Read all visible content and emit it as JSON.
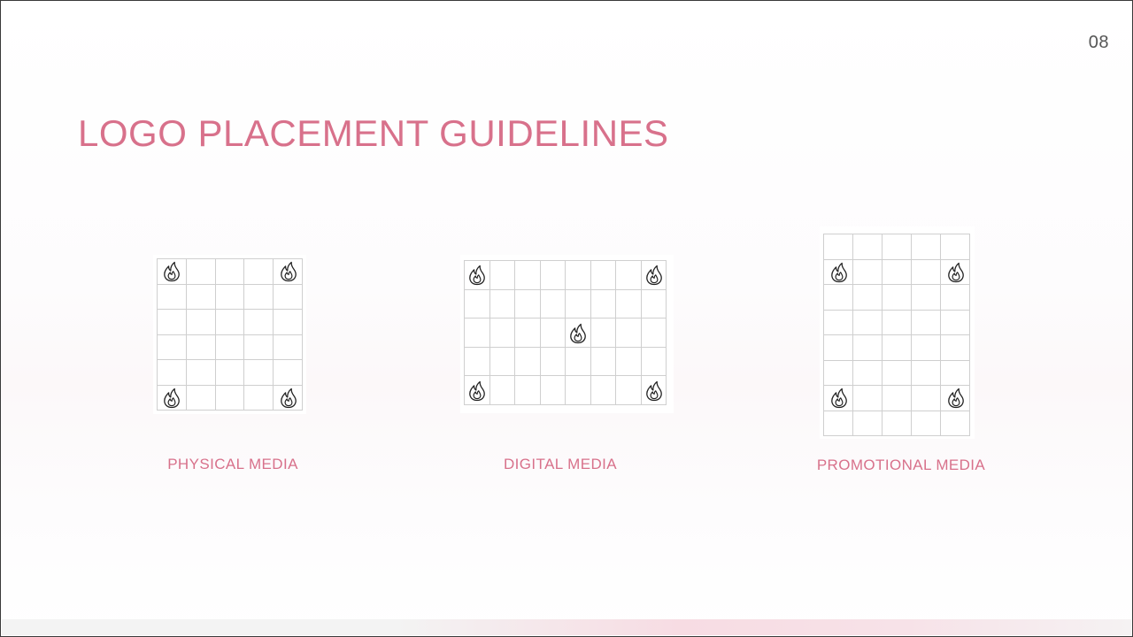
{
  "slide": {
    "page_number": "08",
    "title": "LOGO PLACEMENT GUIDELINES"
  },
  "media": [
    {
      "label": "PHYSICAL MEDIA",
      "grid": {
        "cols": 5,
        "rows": 6
      },
      "logo_cells": [
        [
          0,
          0
        ],
        [
          4,
          0
        ],
        [
          0,
          5
        ],
        [
          4,
          5
        ]
      ]
    },
    {
      "label": "DIGITAL MEDIA",
      "grid": {
        "cols": 8,
        "rows": 5
      },
      "logo_cells": [
        [
          0,
          0
        ],
        [
          7,
          0
        ],
        [
          4,
          2
        ],
        [
          0,
          4
        ],
        [
          7,
          4
        ]
      ]
    },
    {
      "label": "PROMOTIONAL MEDIA",
      "grid": {
        "cols": 5,
        "rows": 8
      },
      "logo_cells": [
        [
          0,
          1
        ],
        [
          4,
          1
        ],
        [
          0,
          6
        ],
        [
          4,
          6
        ]
      ]
    }
  ],
  "icon": "flame-icon",
  "colors": {
    "accent": "#d8718b",
    "grid_line": "#cfcfcf",
    "text_gray": "#555555"
  }
}
